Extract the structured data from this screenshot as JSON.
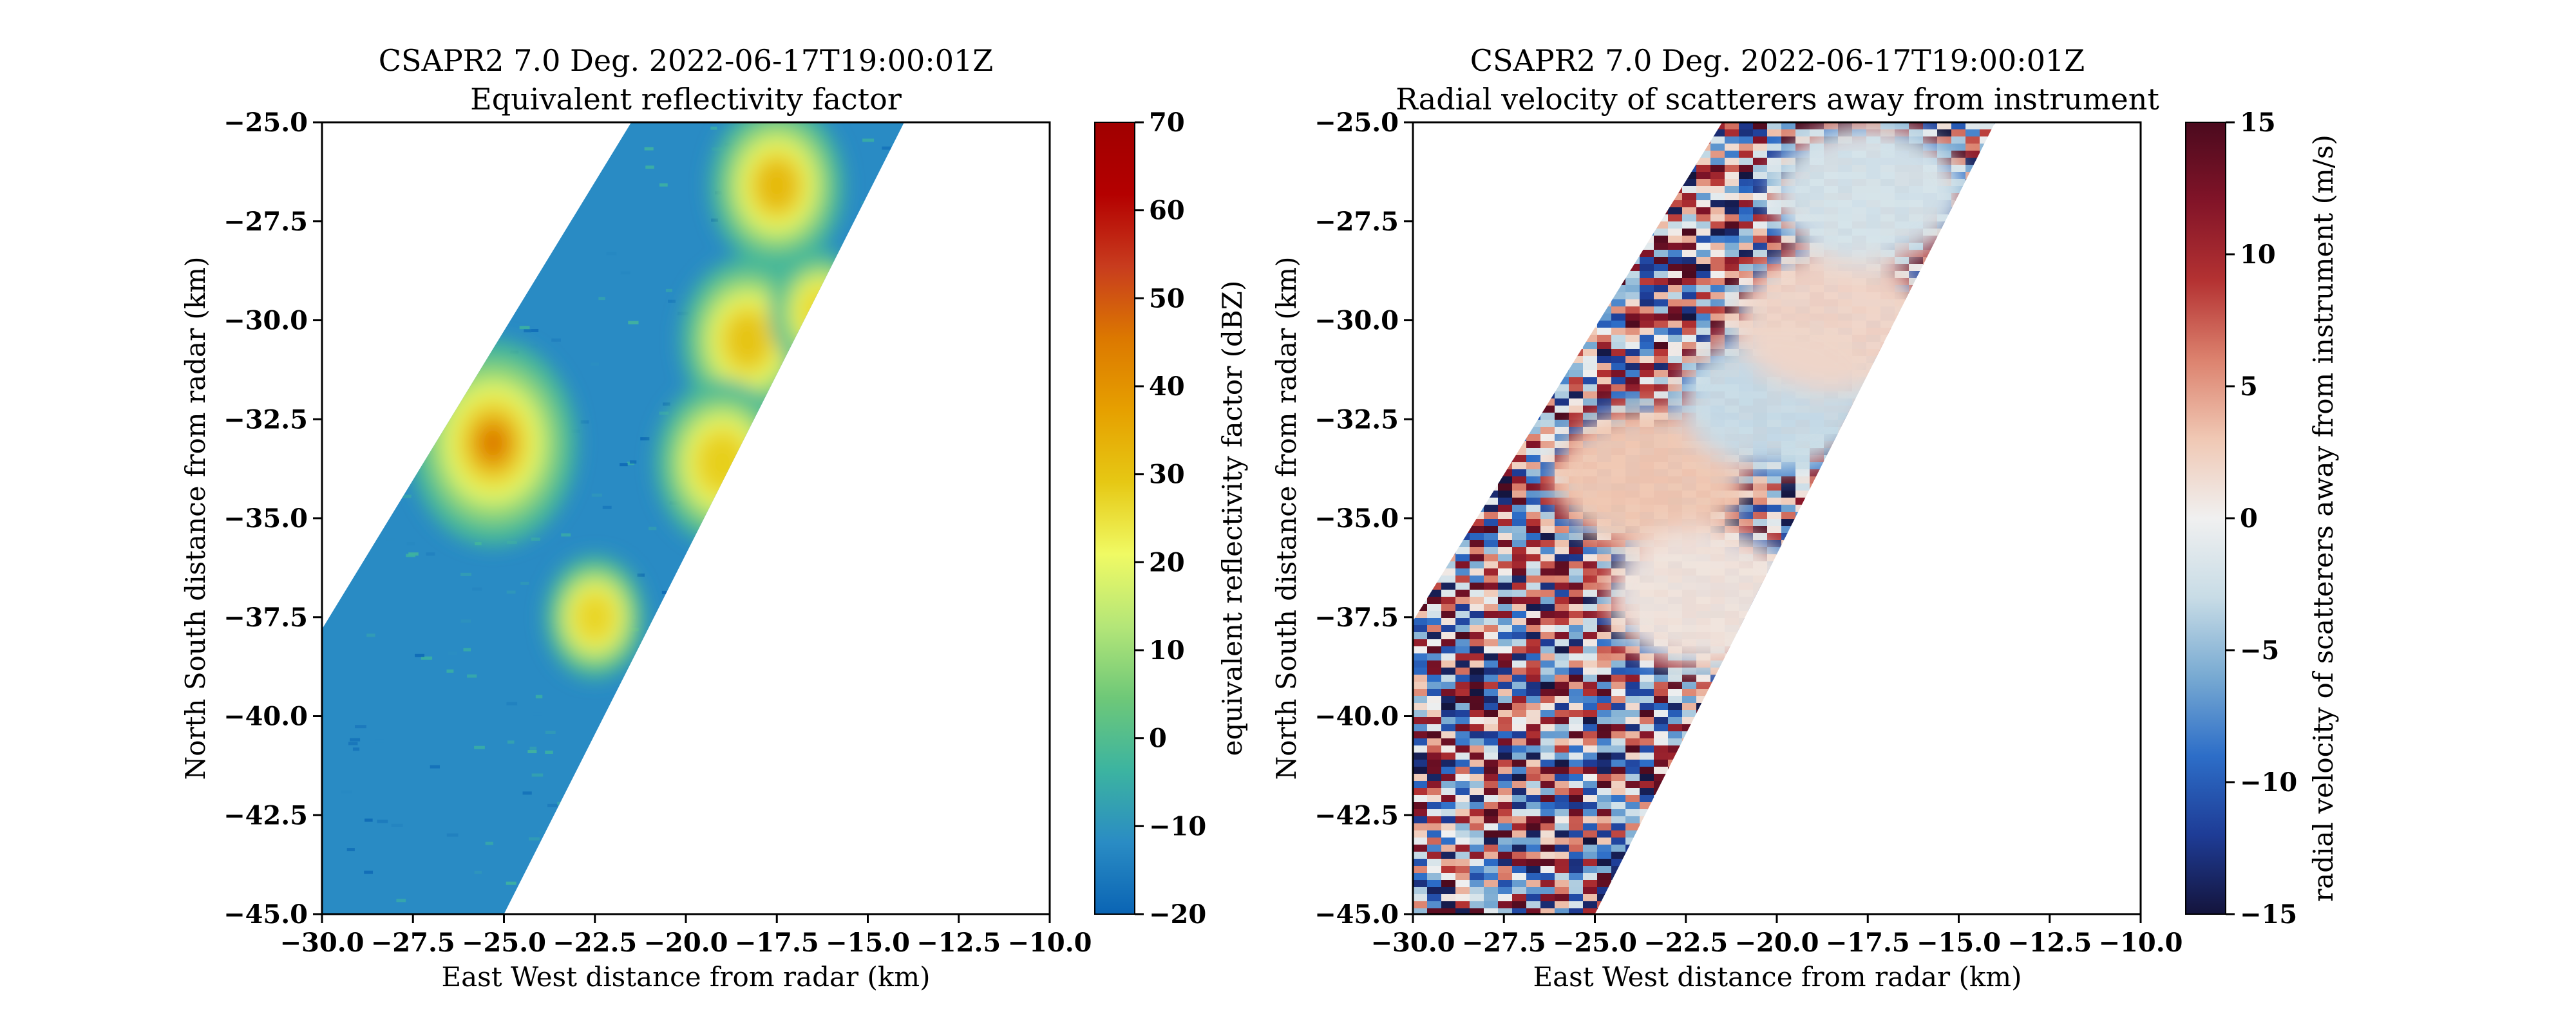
{
  "chart_data": [
    {
      "type": "heatmap",
      "title": "CSAPR2 7.0 Deg. 2022-06-17T19:00:01Z",
      "subtitle": "Equivalent reflectivity factor",
      "xlabel": "East West distance from radar (km)",
      "ylabel": "North South distance from radar (km)",
      "xlim": [
        -30.0,
        -10.0
      ],
      "ylim": [
        -45.0,
        -25.0
      ],
      "xticks": [
        "−30.0",
        "−27.5",
        "−25.0",
        "−22.5",
        "−20.0",
        "−17.5",
        "−15.0",
        "−12.5",
        "−10.0"
      ],
      "yticks": [
        "−25.0",
        "−27.5",
        "−30.0",
        "−32.5",
        "−35.0",
        "−37.5",
        "−40.0",
        "−42.5",
        "−45.0"
      ],
      "colorbar": {
        "label": "equivalent reflectivity factor (dBZ)",
        "range": [
          -20,
          70
        ],
        "ticks": [
          "70",
          "60",
          "50",
          "40",
          "30",
          "20",
          "10",
          "0",
          "−10",
          "−20"
        ],
        "colors": [
          "#0a64b4",
          "#2a8cc4",
          "#3cb4a0",
          "#6ec878",
          "#b4e678",
          "#f0fa64",
          "#e6c814",
          "#e6a000",
          "#dc7800",
          "#c83c1e",
          "#b40000",
          "#a00000"
        ]
      },
      "data_extent": {
        "left_edge": [
          [
            -30.0,
            -37.8
          ],
          [
            -21.5,
            -25.0
          ]
        ],
        "right_edge": [
          [
            -25.0,
            -45.0
          ],
          [
            -14.0,
            -25.0
          ]
        ]
      },
      "cells": [
        {
          "x": -25.3,
          "y": -33.1,
          "dbz": 45
        },
        {
          "x": -17.5,
          "y": -26.6,
          "dbz": 32
        },
        {
          "x": -18.3,
          "y": -30.5,
          "dbz": 30
        },
        {
          "x": -19.0,
          "y": -33.6,
          "dbz": 28
        },
        {
          "x": -22.5,
          "y": -37.5,
          "dbz": 27
        },
        {
          "x": -16.3,
          "y": -29.8,
          "dbz": 26
        }
      ]
    },
    {
      "type": "heatmap",
      "title": "CSAPR2 7.0 Deg. 2022-06-17T19:00:01Z",
      "subtitle": "Radial velocity of scatterers away from instrument",
      "xlabel": "East West distance from radar (km)",
      "ylabel": "North South distance from radar (km)",
      "xlim": [
        -30.0,
        -10.0
      ],
      "ylim": [
        -45.0,
        -25.0
      ],
      "xticks": [
        "−30.0",
        "−27.5",
        "−25.0",
        "−22.5",
        "−20.0",
        "−17.5",
        "−15.0",
        "−12.5",
        "−10.0"
      ],
      "yticks": [
        "−25.0",
        "−27.5",
        "−30.0",
        "−32.5",
        "−35.0",
        "−37.5",
        "−40.0",
        "−42.5",
        "−45.0"
      ],
      "colorbar": {
        "label": "radial velocity of scatterers away from instrument (m/s)",
        "range": [
          -15,
          15
        ],
        "ticks": [
          "15",
          "10",
          "5",
          "0",
          "−5",
          "−10",
          "−15"
        ],
        "colors": [
          "#14143c",
          "#1e3c96",
          "#2d6ec8",
          "#78aad2",
          "#c8dce6",
          "#f0f0f0",
          "#f0c8b4",
          "#dc826e",
          "#b43232",
          "#821428",
          "#4b0a1e"
        ]
      },
      "data_extent": {
        "left_edge": [
          [
            -30.0,
            -37.6
          ],
          [
            -21.5,
            -25.0
          ]
        ],
        "right_edge": [
          [
            -25.0,
            -45.0
          ],
          [
            -14.0,
            -25.0
          ]
        ]
      },
      "smooth_regions": [
        {
          "x": -23.5,
          "y": -34.0,
          "velocity": 3
        },
        {
          "x": -20.0,
          "y": -32.0,
          "velocity": -3
        },
        {
          "x": -18.5,
          "y": -30.0,
          "velocity": 2
        },
        {
          "x": -17.5,
          "y": -26.8,
          "velocity": -2
        },
        {
          "x": -22.0,
          "y": -37.0,
          "velocity": 1
        }
      ]
    }
  ]
}
